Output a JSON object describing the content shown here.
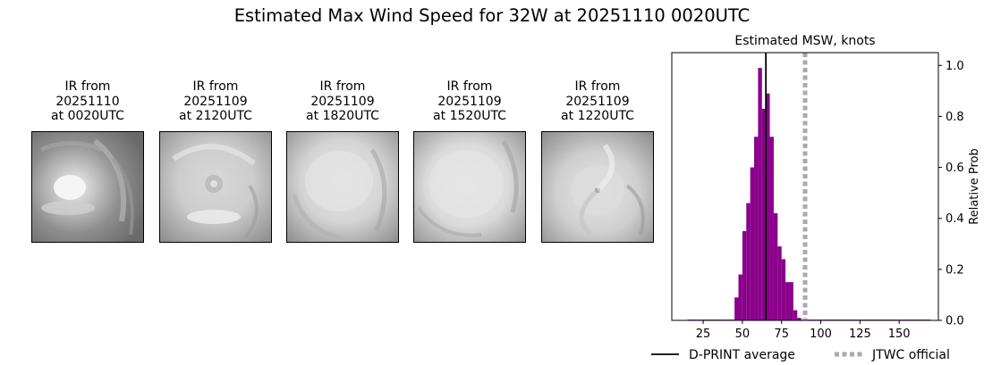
{
  "figure_title": "Estimated Max Wind Speed for 32W at 20251110 0020UTC",
  "ir_panels": [
    {
      "line1": "IR from",
      "line2": "20251110",
      "line3": "at 0020UTC"
    },
    {
      "line1": "IR from",
      "line2": "20251109",
      "line3": "at 2120UTC"
    },
    {
      "line1": "IR from",
      "line2": "20251109",
      "line3": "at 1820UTC"
    },
    {
      "line1": "IR from",
      "line2": "20251109",
      "line3": "at 1520UTC"
    },
    {
      "line1": "IR from",
      "line2": "20251109",
      "line3": "at 1220UTC"
    }
  ],
  "chart_data": {
    "type": "bar",
    "title": "Estimated MSW, knots",
    "xlabel": "",
    "ylabel": "Relative Prob",
    "xlim": [
      5,
      175
    ],
    "ylim": [
      0,
      1.05
    ],
    "xticks": [
      25,
      50,
      75,
      100,
      125,
      150
    ],
    "yticks": [
      0.0,
      0.2,
      0.4,
      0.6,
      0.8,
      1.0
    ],
    "ytick_labels": [
      "0.0",
      "0.2",
      "0.4",
      "0.6",
      "0.8",
      "1.0"
    ],
    "y_axis_side": "right",
    "bar_color": "#8b008b",
    "bin_width": 2.5,
    "bins": [
      {
        "x": 15,
        "y": 0.003
      },
      {
        "x": 17.5,
        "y": 0.003
      },
      {
        "x": 20,
        "y": 0.003
      },
      {
        "x": 22.5,
        "y": 0.003
      },
      {
        "x": 25,
        "y": 0.003
      },
      {
        "x": 27.5,
        "y": 0.003
      },
      {
        "x": 30,
        "y": 0.003
      },
      {
        "x": 32.5,
        "y": 0.003
      },
      {
        "x": 35,
        "y": 0.003
      },
      {
        "x": 37.5,
        "y": 0.003
      },
      {
        "x": 40,
        "y": 0.003
      },
      {
        "x": 42.5,
        "y": 0.003
      },
      {
        "x": 45,
        "y": 0.09
      },
      {
        "x": 47.5,
        "y": 0.18
      },
      {
        "x": 50,
        "y": 0.35
      },
      {
        "x": 52.5,
        "y": 0.46
      },
      {
        "x": 55,
        "y": 0.6
      },
      {
        "x": 57.5,
        "y": 0.72
      },
      {
        "x": 60,
        "y": 0.99
      },
      {
        "x": 62.5,
        "y": 0.83
      },
      {
        "x": 65,
        "y": 0.89
      },
      {
        "x": 67.5,
        "y": 0.72
      },
      {
        "x": 70,
        "y": 0.42
      },
      {
        "x": 72.5,
        "y": 0.29
      },
      {
        "x": 75,
        "y": 0.24
      },
      {
        "x": 77.5,
        "y": 0.15
      },
      {
        "x": 80,
        "y": 0.15
      },
      {
        "x": 82.5,
        "y": 0.04
      },
      {
        "x": 85,
        "y": 0.01
      },
      {
        "x": 87.5,
        "y": 0.003
      },
      {
        "x": 90,
        "y": 0.003
      },
      {
        "x": 92.5,
        "y": 0.003
      },
      {
        "x": 95,
        "y": 0.003
      },
      {
        "x": 97.5,
        "y": 0.003
      },
      {
        "x": 100,
        "y": 0.003
      },
      {
        "x": 102.5,
        "y": 0.003
      },
      {
        "x": 105,
        "y": 0.003
      },
      {
        "x": 107.5,
        "y": 0.003
      },
      {
        "x": 110,
        "y": 0.003
      },
      {
        "x": 112.5,
        "y": 0.003
      },
      {
        "x": 115,
        "y": 0.003
      },
      {
        "x": 117.5,
        "y": 0.003
      },
      {
        "x": 120,
        "y": 0.003
      },
      {
        "x": 122.5,
        "y": 0.003
      },
      {
        "x": 125,
        "y": 0.003
      },
      {
        "x": 127.5,
        "y": 0.003
      },
      {
        "x": 130,
        "y": 0.003
      },
      {
        "x": 132.5,
        "y": 0.003
      },
      {
        "x": 135,
        "y": 0.003
      },
      {
        "x": 137.5,
        "y": 0.003
      },
      {
        "x": 140,
        "y": 0.003
      },
      {
        "x": 142.5,
        "y": 0.003
      },
      {
        "x": 145,
        "y": 0.003
      },
      {
        "x": 147.5,
        "y": 0.003
      },
      {
        "x": 150,
        "y": 0.003
      },
      {
        "x": 152.5,
        "y": 0.003
      },
      {
        "x": 155,
        "y": 0.003
      },
      {
        "x": 157.5,
        "y": 0.003
      },
      {
        "x": 160,
        "y": 0.003
      },
      {
        "x": 162.5,
        "y": 0.003
      },
      {
        "x": 165,
        "y": 0.003
      },
      {
        "x": 167.5,
        "y": 0.003
      }
    ],
    "reference_lines": [
      {
        "name": "D-PRINT average",
        "x": 65,
        "color": "#000000",
        "style": "solid"
      },
      {
        "name": "JTWC official",
        "x": 90,
        "color": "#aaaaaa",
        "style": "dotted"
      }
    ],
    "legend": {
      "placement": "bottom",
      "entries": [
        {
          "label": "D-PRINT average",
          "color": "#000000",
          "style": "solid"
        },
        {
          "label": "JTWC official",
          "color": "#aaaaaa",
          "style": "dotted"
        }
      ]
    }
  }
}
